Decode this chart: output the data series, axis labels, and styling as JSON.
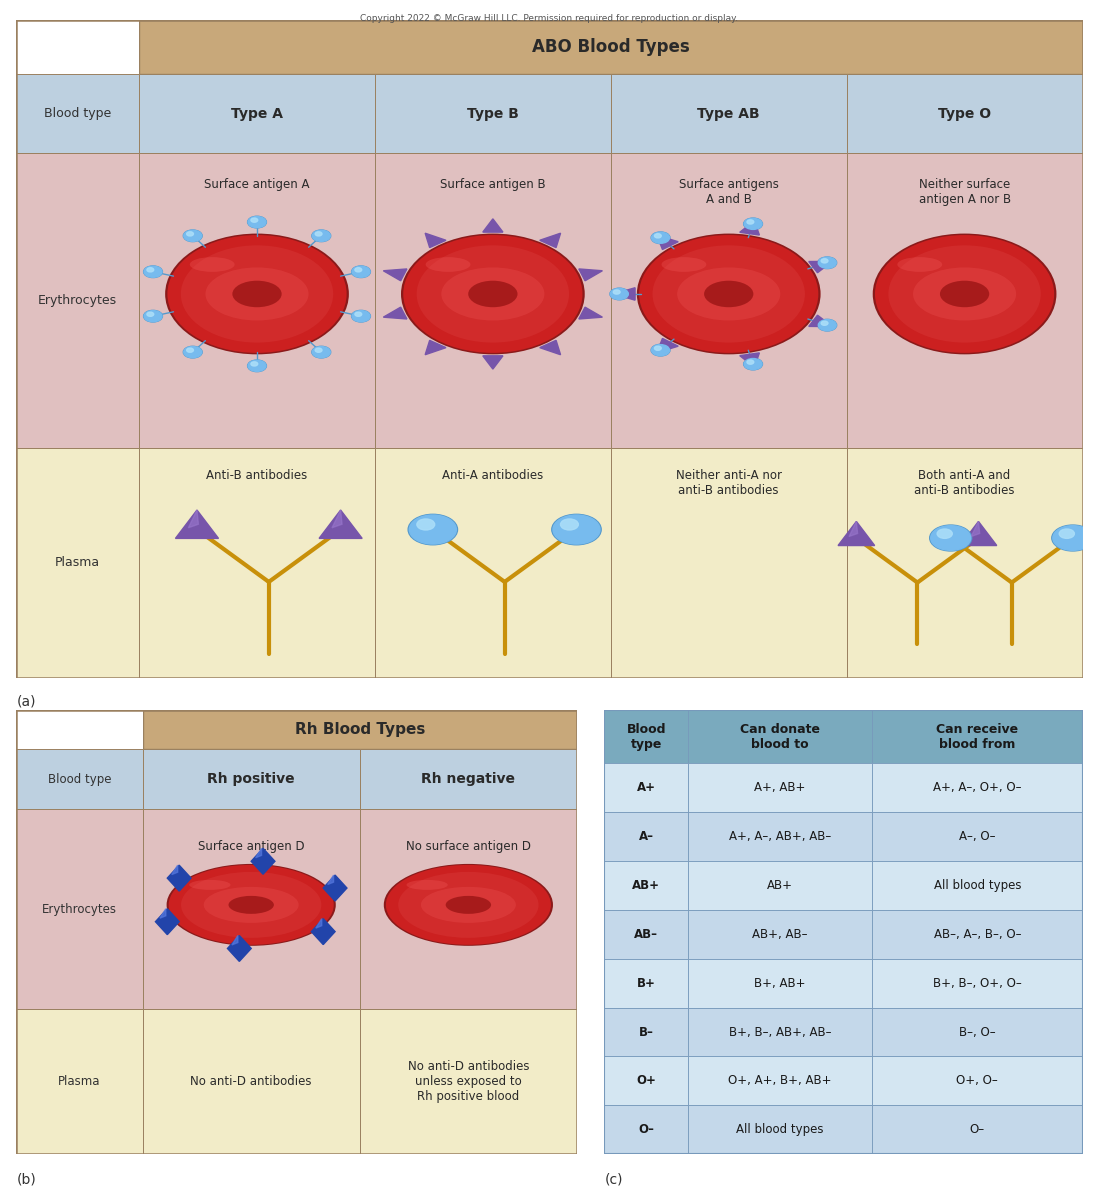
{
  "copyright_text": "Copyright 2022 © McGraw Hill LLC. Permission required for reproduction or display.",
  "abo_title": "ABO Blood Types",
  "rh_title": "Rh Blood Types",
  "blood_type_label": "Blood type",
  "erythrocytes_label": "Erythrocytes",
  "plasma_label": "Plasma",
  "abo_col_labels": [
    "Type A",
    "Type B",
    "Type AB",
    "Type O"
  ],
  "abo_antigen_labels": [
    "Surface antigen A",
    "Surface antigen B",
    "Surface antigens\nA and B",
    "Neither surface\nantigen A nor B"
  ],
  "abo_antibody_labels": [
    "Anti-B antibodies",
    "Anti-A antibodies",
    "Neither anti-A nor\nanti-B antibodies",
    "Both anti-A and\nanti-B antibodies"
  ],
  "rh_col_labels": [
    "Rh positive",
    "Rh negative"
  ],
  "rh_antigen_labels": [
    "Surface antigen D",
    "No surface antigen D"
  ],
  "rh_plasma_labels": [
    "No anti-D antibodies",
    "No anti-D antibodies\nunless exposed to\nRh positive blood"
  ],
  "table_c_headers": [
    "Blood\ntype",
    "Can donate\nblood to",
    "Can receive\nblood from"
  ],
  "table_c_data": [
    [
      "A+",
      "A+, AB+",
      "A+, A–, O+, O–"
    ],
    [
      "A–",
      "A+, A–, AB+, AB–",
      "A–, O–"
    ],
    [
      "AB+",
      "AB+",
      "All blood types"
    ],
    [
      "AB–",
      "AB+, AB–",
      "AB–, A–, B–, O–"
    ],
    [
      "B+",
      "B+, AB+",
      "B+, B–, O+, O–"
    ],
    [
      "B–",
      "B+, B–, AB+, AB–",
      "B–, O–"
    ],
    [
      "O+",
      "O+, A+, B+, AB+",
      "O+, O–"
    ],
    [
      "O–",
      "All blood types",
      "O–"
    ]
  ],
  "color_tan": "#C8A87A",
  "color_blue_light": "#BDD0E0",
  "color_pink": "#E0C0C0",
  "color_yellow": "#F2ECC8",
  "color_border": "#9A8060",
  "color_table_c_header": "#7AAABE",
  "label_a": "(a)",
  "label_b": "(b)",
  "label_c": "(c)"
}
